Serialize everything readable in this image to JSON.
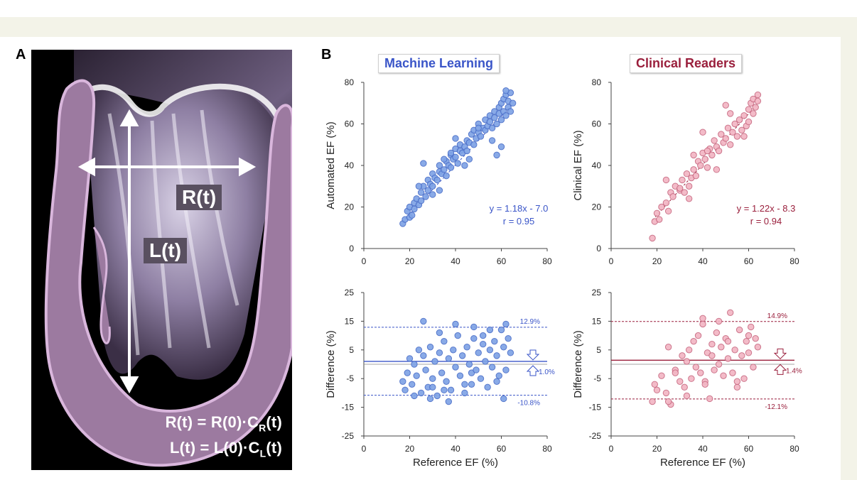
{
  "panel_a_label": "A",
  "panel_b_label": "B",
  "heart": {
    "r_label": "R(t)",
    "l_label": "L(t)",
    "formula_r": {
      "lhs": "R(t) = R(0)·C",
      "sub": "R",
      "tail": "(t)"
    },
    "formula_l": {
      "lhs": "L(t) = L(0)·C",
      "sub": "L",
      "tail": "(t)"
    }
  },
  "colors": {
    "ml": "#3a55c8",
    "ml_fill": "#7fa3e6",
    "ml_stroke": "#4a6ec8",
    "cr": "#9a1f3c",
    "cr_fill": "#f2b6c4",
    "cr_stroke": "#c86a82",
    "myocardium": "#9c7aa0",
    "myocardium_edge": "#d9b6dc"
  },
  "chart_data": [
    {
      "type": "scatter",
      "title": "Machine Learning",
      "xlabel": "",
      "ylabel": "Automated EF (%)",
      "xlim": [
        0,
        80
      ],
      "ylim": [
        0,
        80
      ],
      "xticks": [
        0,
        20,
        40,
        60,
        80
      ],
      "yticks": [
        0,
        20,
        40,
        60,
        80
      ],
      "regression": {
        "slope": 1.18,
        "intercept": -7.0
      },
      "annotation": [
        "y = 1.18x - 7.0",
        "r = 0.95"
      ],
      "x": [
        17,
        18,
        19,
        20,
        20,
        21,
        22,
        22,
        23,
        24,
        25,
        25,
        26,
        27,
        28,
        28,
        29,
        30,
        30,
        31,
        32,
        33,
        33,
        34,
        35,
        36,
        36,
        37,
        38,
        38,
        39,
        40,
        40,
        41,
        42,
        42,
        43,
        44,
        45,
        45,
        46,
        47,
        48,
        48,
        49,
        50,
        50,
        51,
        52,
        53,
        53,
        54,
        55,
        55,
        56,
        57,
        57,
        58,
        59,
        59,
        60,
        60,
        61,
        61,
        62,
        62,
        63,
        63,
        64,
        64,
        65,
        26,
        30,
        35,
        38,
        44,
        50,
        56,
        60,
        62,
        58,
        46,
        40,
        33,
        24
      ],
      "y": [
        12,
        14,
        18,
        15,
        20,
        16,
        22,
        19,
        24,
        21,
        27,
        23,
        30,
        25,
        28,
        33,
        31,
        30,
        36,
        34,
        33,
        37,
        40,
        36,
        38,
        42,
        35,
        40,
        45,
        39,
        43,
        44,
        48,
        41,
        47,
        50,
        46,
        49,
        52,
        47,
        51,
        55,
        50,
        57,
        53,
        56,
        60,
        54,
        58,
        57,
        62,
        59,
        61,
        64,
        58,
        63,
        66,
        60,
        65,
        68,
        62,
        70,
        66,
        72,
        64,
        74,
        68,
        71,
        75,
        66,
        70,
        41,
        26,
        43,
        46,
        40,
        58,
        52,
        49,
        76,
        45,
        43,
        53,
        28,
        30
      ]
    },
    {
      "type": "scatter",
      "title": "Clinical Readers",
      "xlabel": "",
      "ylabel": "Clinical EF (%)",
      "xlim": [
        0,
        80
      ],
      "ylim": [
        0,
        80
      ],
      "xticks": [
        0,
        20,
        40,
        60,
        80
      ],
      "yticks": [
        0,
        20,
        40,
        60,
        80
      ],
      "regression": {
        "slope": 1.22,
        "intercept": -8.3
      },
      "annotation": [
        "y = 1.22x - 8.3",
        "r = 0.94"
      ],
      "x": [
        18,
        19,
        20,
        21,
        22,
        24,
        25,
        26,
        27,
        28,
        30,
        31,
        32,
        33,
        34,
        35,
        36,
        37,
        38,
        39,
        40,
        41,
        42,
        43,
        44,
        45,
        46,
        47,
        48,
        49,
        50,
        51,
        52,
        53,
        54,
        55,
        56,
        57,
        58,
        59,
        60,
        60,
        61,
        62,
        62,
        63,
        64,
        64,
        24,
        30,
        36,
        40,
        46,
        52,
        58,
        50,
        42,
        34
      ],
      "y": [
        5,
        13,
        17,
        14,
        20,
        22,
        18,
        27,
        25,
        30,
        28,
        33,
        27,
        36,
        30,
        34,
        38,
        35,
        42,
        40,
        46,
        43,
        39,
        48,
        45,
        52,
        49,
        47,
        55,
        51,
        53,
        58,
        50,
        56,
        60,
        54,
        62,
        57,
        64,
        59,
        67,
        61,
        70,
        65,
        72,
        68,
        74,
        71,
        33,
        29,
        45,
        56,
        38,
        65,
        54,
        69,
        47,
        24
      ]
    },
    {
      "type": "scatter",
      "title": "",
      "xlabel": "Reference EF (%)",
      "ylabel": "Difference (%)",
      "xlim": [
        0,
        80
      ],
      "ylim": [
        -25,
        25
      ],
      "xticks": [
        0,
        20,
        40,
        60,
        80
      ],
      "yticks": [
        -25,
        -15,
        -5,
        5,
        15,
        25
      ],
      "mean_line": 1.0,
      "loa": [
        12.9,
        -10.8
      ],
      "labels": {
        "upper": "12.9%",
        "mean": "1.0%",
        "lower": "-10.8%"
      },
      "x": [
        17,
        18,
        19,
        20,
        21,
        22,
        23,
        24,
        25,
        26,
        27,
        28,
        29,
        30,
        31,
        32,
        33,
        34,
        35,
        36,
        37,
        38,
        39,
        40,
        41,
        42,
        43,
        44,
        45,
        46,
        47,
        48,
        49,
        50,
        51,
        52,
        53,
        54,
        55,
        56,
        57,
        58,
        59,
        60,
        61,
        62,
        63,
        64,
        26,
        33,
        40,
        48,
        55,
        61,
        62,
        44,
        37,
        29,
        22,
        58,
        52,
        47,
        35,
        30
      ],
      "y": [
        -6,
        -9,
        -3,
        2,
        -7,
        0,
        -4,
        5,
        -10,
        3,
        -2,
        -8,
        6,
        -5,
        1,
        -11,
        4,
        -3,
        8,
        -6,
        2,
        -9,
        5,
        -1,
        10,
        -4,
        3,
        -7,
        6,
        0,
        -3,
        9,
        -2,
        4,
        -5,
        7,
        1,
        -8,
        5,
        -1,
        8,
        3,
        -4,
        12,
        6,
        -2,
        9,
        4,
        15,
        11,
        14,
        13,
        12,
        -12,
        14,
        -10,
        -13,
        -12,
        -11,
        -6,
        10,
        -7,
        -9,
        -8
      ]
    },
    {
      "type": "scatter",
      "title": "",
      "xlabel": "Reference EF (%)",
      "ylabel": "Difference (%)",
      "xlim": [
        0,
        80
      ],
      "ylim": [
        -25,
        25
      ],
      "xticks": [
        0,
        20,
        40,
        60,
        80
      ],
      "yticks": [
        -25,
        -15,
        -5,
        5,
        15,
        25
      ],
      "mean_line": 1.4,
      "loa": [
        14.9,
        -12.1
      ],
      "labels": {
        "upper": "14.9%",
        "mean": "1.4%",
        "lower": "-12.1%"
      },
      "x": [
        18,
        19,
        20,
        22,
        24,
        25,
        26,
        28,
        30,
        31,
        32,
        33,
        34,
        35,
        36,
        37,
        38,
        39,
        40,
        41,
        42,
        43,
        44,
        45,
        46,
        47,
        48,
        49,
        50,
        51,
        52,
        53,
        54,
        55,
        56,
        57,
        58,
        59,
        60,
        61,
        62,
        63,
        64,
        25,
        40,
        51,
        41,
        44,
        55,
        60,
        33,
        28,
        47
      ],
      "y": [
        -13,
        -7,
        -9,
        -4,
        -10,
        6,
        -14,
        -2,
        -6,
        3,
        -8,
        1,
        5,
        -5,
        8,
        -1,
        10,
        -3,
        16,
        -6,
        4,
        -12,
        7,
        -2,
        11,
        0,
        6,
        -4,
        9,
        2,
        18,
        -3,
        5,
        -8,
        12,
        3,
        -5,
        8,
        4,
        13,
        -1,
        9,
        6,
        -13,
        14,
        8,
        -7,
        3,
        -6,
        10,
        -11,
        -3,
        15
      ]
    }
  ],
  "bottom_xlabel": "Reference EF (%)"
}
